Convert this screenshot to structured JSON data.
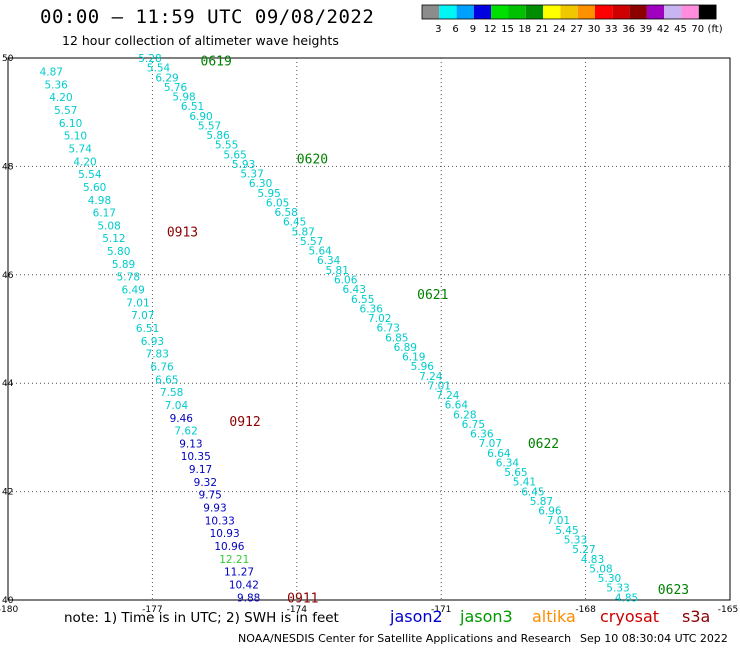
{
  "header": {
    "title": "00:00 — 11:59 UTC 09/08/2022",
    "subtitle": "12 hour collection of altimeter wave heights"
  },
  "legend": {
    "colors": [
      "#8c8c8c",
      "#00f5f5",
      "#00a0ff",
      "#0000e0",
      "#00e000",
      "#00c000",
      "#008c00",
      "#ffff00",
      "#f0c800",
      "#ff9000",
      "#ff0000",
      "#d00000",
      "#8c0000",
      "#a000c0",
      "#c8b4f0",
      "#ff8cdc",
      "#000000"
    ],
    "labels": [
      "3",
      "6",
      "9",
      "12",
      "15",
      "18",
      "21",
      "24",
      "27",
      "30",
      "33",
      "36",
      "39",
      "42",
      "45",
      "70",
      "(ft)"
    ]
  },
  "map": {
    "lon_ticks": [
      "-180",
      "-177",
      "-174",
      "-171",
      "-168",
      "-165"
    ],
    "lat_ticks": [
      "50",
      "48",
      "46",
      "44",
      "42",
      "40"
    ],
    "pass_labels": [
      {
        "text": "0619",
        "color": "#008000",
        "lat": 49.95,
        "lon": -176.0
      },
      {
        "text": "0620",
        "color": "#008000",
        "lat": 48.15,
        "lon": -174.0
      },
      {
        "text": "0621",
        "color": "#008000",
        "lat": 45.65,
        "lon": -171.5
      },
      {
        "text": "0622",
        "color": "#008000",
        "lat": 42.9,
        "lon": -169.2
      },
      {
        "text": "0623",
        "color": "#008000",
        "lat": 40.2,
        "lon": -166.5
      },
      {
        "text": "0913",
        "color": "#8b0000",
        "lat": 46.8,
        "lon": -176.7
      },
      {
        "text": "0912",
        "color": "#8b0000",
        "lat": 43.3,
        "lon": -175.4
      },
      {
        "text": "0911",
        "color": "#8b0000",
        "lat": 40.05,
        "lon": -174.2
      }
    ],
    "tracks": [
      {
        "name": "0619-0623",
        "start": {
          "lat": 50.0,
          "lon": -177.05
        },
        "end": {
          "lat": 40.05,
          "lon": -167.15
        },
        "values": [
          "5.28",
          "5.54",
          "6.29",
          "5.76",
          "5.98",
          "6.51",
          "6.90",
          "5.57",
          "5.86",
          "5.55",
          "5.65",
          "5.93",
          "5.37",
          "6.30",
          "5.95",
          "6.05",
          "6.58",
          "6.45",
          "5.87",
          "5.57",
          "5.64",
          "6.34",
          "5.81",
          "6.06",
          "6.43",
          "6.55",
          "6.36",
          "7.02",
          "6.73",
          "6.85",
          "6.89",
          "6.19",
          "5.96",
          "7.24",
          "7.01",
          "7.24",
          "6.64",
          "6.28",
          "6.75",
          "6.36",
          "7.07",
          "6.64",
          "6.34",
          "5.65",
          "5.41",
          "6.45",
          "5.87",
          "6.96",
          "7.01",
          "5.45",
          "5.33",
          "5.27",
          "4.83",
          "5.08",
          "5.30",
          "5.33",
          "4.85"
        ],
        "colors": [
          "c",
          "c",
          "c",
          "c",
          "c",
          "c",
          "c",
          "c",
          "c",
          "c",
          "c",
          "c",
          "c",
          "c",
          "c",
          "c",
          "c",
          "c",
          "c",
          "c",
          "c",
          "c",
          "c",
          "c",
          "c",
          "c",
          "c",
          "c",
          "c",
          "c",
          "c",
          "c",
          "c",
          "c",
          "c",
          "c",
          "c",
          "c",
          "c",
          "c",
          "c",
          "c",
          "c",
          "c",
          "c",
          "c",
          "c",
          "c",
          "c",
          "c",
          "c",
          "c",
          "c",
          "c",
          "c",
          "c",
          "c"
        ]
      },
      {
        "name": "0911-0913",
        "start": {
          "lat": 49.75,
          "lon": -179.1
        },
        "end": {
          "lat": 40.05,
          "lon": -175.0
        },
        "values": [
          "4.87",
          "5.36",
          "4.20",
          "5.57",
          "6.10",
          "5.10",
          "5.74",
          "4.20",
          "5.54",
          "5.60",
          "4.98",
          "6.17",
          "5.08",
          "5.12",
          "5.80",
          "5.89",
          "5.78",
          "6.49",
          "7.01",
          "7.07",
          "6.51",
          "6.93",
          "7.83",
          "6.76",
          "6.65",
          "7.58",
          "7.04",
          "9.46",
          "7.62",
          "9.13",
          "10.35",
          "9.17",
          "9.32",
          "9.75",
          "9.93",
          "10.33",
          "10.93",
          "10.96",
          "12.21",
          "11.27",
          "10.42",
          "9.88"
        ],
        "colors": [
          "c",
          "c",
          "c",
          "c",
          "c",
          "c",
          "c",
          "c",
          "c",
          "c",
          "c",
          "c",
          "c",
          "c",
          "c",
          "c",
          "c",
          "c",
          "c",
          "c",
          "c",
          "c",
          "c",
          "c",
          "c",
          "c",
          "c",
          "b",
          "c",
          "b",
          "b",
          "b",
          "b",
          "b",
          "b",
          "b",
          "b",
          "b",
          "g",
          "b",
          "b",
          "b"
        ]
      }
    ],
    "value_colors": {
      "c": "#00cccc",
      "b": "#0000c0",
      "g": "#33cc33"
    }
  },
  "footer": {
    "note": "note: 1) Time is in UTC; 2) SWH is in feet",
    "satellites": [
      {
        "name": "jason2",
        "color": "#0000cc"
      },
      {
        "name": "jason3",
        "color": "#009900"
      },
      {
        "name": "altika",
        "color": "#ff8c00"
      },
      {
        "name": "cryosat",
        "color": "#cc0000"
      },
      {
        "name": "s3a",
        "color": "#8b0000"
      }
    ],
    "credit": "NOAA/NESDIS Center for Satellite Applications and Research",
    "timestamp": "Sep 10 08:30:04 UTC 2022"
  }
}
